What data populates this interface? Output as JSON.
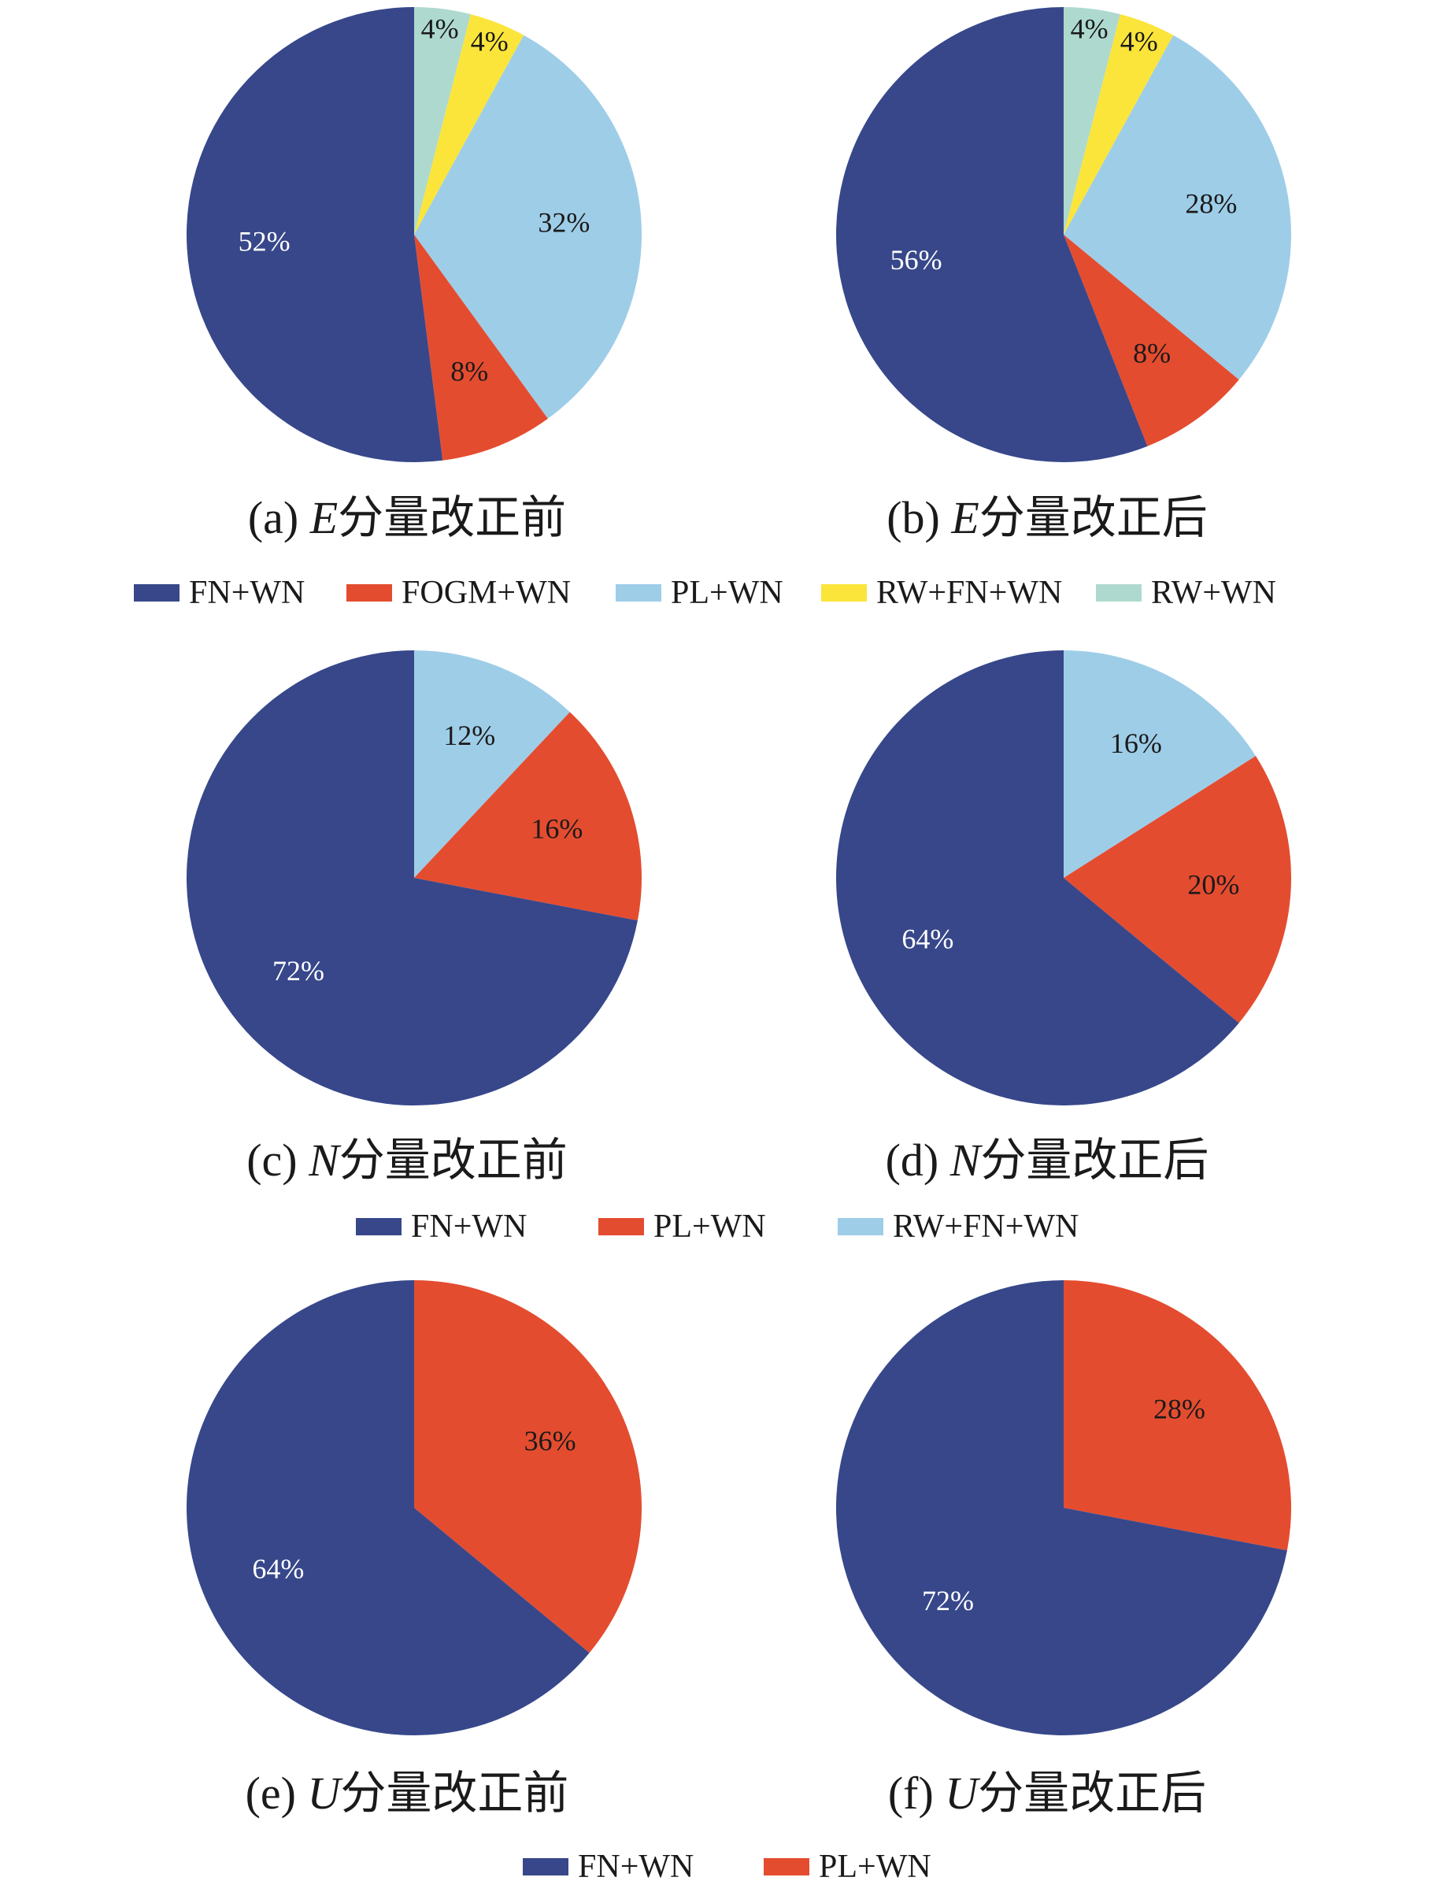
{
  "colors": {
    "fn_wn": "#37478a",
    "red": "#e44c2f",
    "light_blue": "#9ecde8",
    "yellow": "#fbe53a",
    "mint": "#aed9cf"
  },
  "legends": [
    {
      "id": "legend-e",
      "entries": [
        {
          "label": "FN+WN",
          "color": "#37478a"
        },
        {
          "label": "FOGM+WN",
          "color": "#e44c2f"
        },
        {
          "label": "PL+WN",
          "color": "#9ecde8"
        },
        {
          "label": "RW+FN+WN",
          "color": "#fbe53a"
        },
        {
          "label": "RW+WN",
          "color": "#aed9cf"
        }
      ]
    },
    {
      "id": "legend-n",
      "entries": [
        {
          "label": "FN+WN",
          "color": "#37478a"
        },
        {
          "label": "PL+WN",
          "color": "#e44c2f"
        },
        {
          "label": "RW+FN+WN",
          "color": "#9ecde8"
        }
      ]
    },
    {
      "id": "legend-u",
      "entries": [
        {
          "label": "FN+WN",
          "color": "#37478a"
        },
        {
          "label": "PL+WN",
          "color": "#e44c2f"
        }
      ]
    }
  ],
  "chart_data": [
    {
      "type": "pie",
      "caption_prefix": "(a) ",
      "caption_var": "E",
      "caption_suffix": "分量改正前",
      "slices": [
        {
          "label": "RW+WN",
          "value": 4,
          "text": "4%",
          "color": "#aed9cf",
          "text_color": "#1a1a1a"
        },
        {
          "label": "RW+FN+WN",
          "value": 4,
          "text": "4%",
          "color": "#fbe53a",
          "text_color": "#1a1a1a"
        },
        {
          "label": "PL+WN",
          "value": 32,
          "text": "32%",
          "color": "#9ecde8",
          "text_color": "#1a1a1a"
        },
        {
          "label": "FOGM+WN",
          "value": 8,
          "text": "8%",
          "color": "#e44c2f",
          "text_color": "#1a1a1a"
        },
        {
          "label": "FN+WN",
          "value": 52,
          "text": "52%",
          "color": "#37478a",
          "text_color": "#ffffff"
        }
      ]
    },
    {
      "type": "pie",
      "caption_prefix": "(b) ",
      "caption_var": "E",
      "caption_suffix": "分量改正后",
      "slices": [
        {
          "label": "RW+WN",
          "value": 4,
          "text": "4%",
          "color": "#aed9cf",
          "text_color": "#1a1a1a"
        },
        {
          "label": "RW+FN+WN",
          "value": 4,
          "text": "4%",
          "color": "#fbe53a",
          "text_color": "#1a1a1a"
        },
        {
          "label": "PL+WN",
          "value": 28,
          "text": "28%",
          "color": "#9ecde8",
          "text_color": "#1a1a1a"
        },
        {
          "label": "FOGM+WN",
          "value": 8,
          "text": "8%",
          "color": "#e44c2f",
          "text_color": "#1a1a1a"
        },
        {
          "label": "FN+WN",
          "value": 56,
          "text": "56%",
          "color": "#37478a",
          "text_color": "#ffffff"
        }
      ]
    },
    {
      "type": "pie",
      "caption_prefix": "(c) ",
      "caption_var": "N",
      "caption_suffix": "分量改正前",
      "slices": [
        {
          "label": "RW+FN+WN",
          "value": 12,
          "text": "12%",
          "color": "#9ecde8",
          "text_color": "#1a1a1a"
        },
        {
          "label": "PL+WN",
          "value": 16,
          "text": "16%",
          "color": "#e44c2f",
          "text_color": "#1a1a1a"
        },
        {
          "label": "FN+WN",
          "value": 72,
          "text": "72%",
          "color": "#37478a",
          "text_color": "#ffffff"
        }
      ]
    },
    {
      "type": "pie",
      "caption_prefix": "(d) ",
      "caption_var": "N",
      "caption_suffix": "分量改正后",
      "slices": [
        {
          "label": "RW+FN+WN",
          "value": 16,
          "text": "16%",
          "color": "#9ecde8",
          "text_color": "#1a1a1a"
        },
        {
          "label": "PL+WN",
          "value": 20,
          "text": "20%",
          "color": "#e44c2f",
          "text_color": "#1a1a1a"
        },
        {
          "label": "FN+WN",
          "value": 64,
          "text": "64%",
          "color": "#37478a",
          "text_color": "#ffffff"
        }
      ]
    },
    {
      "type": "pie",
      "caption_prefix": "(e) ",
      "caption_var": "U",
      "caption_suffix": "分量改正前",
      "slices": [
        {
          "label": "PL+WN",
          "value": 36,
          "text": "36%",
          "color": "#e44c2f",
          "text_color": "#1a1a1a"
        },
        {
          "label": "FN+WN",
          "value": 64,
          "text": "64%",
          "color": "#37478a",
          "text_color": "#ffffff"
        }
      ]
    },
    {
      "type": "pie",
      "caption_prefix": "(f) ",
      "caption_var": "U",
      "caption_suffix": "分量改正后",
      "slices": [
        {
          "label": "PL+WN",
          "value": 28,
          "text": "28%",
          "color": "#e44c2f",
          "text_color": "#1a1a1a"
        },
        {
          "label": "FN+WN",
          "value": 72,
          "text": "72%",
          "color": "#37478a",
          "text_color": "#ffffff"
        }
      ]
    }
  ]
}
